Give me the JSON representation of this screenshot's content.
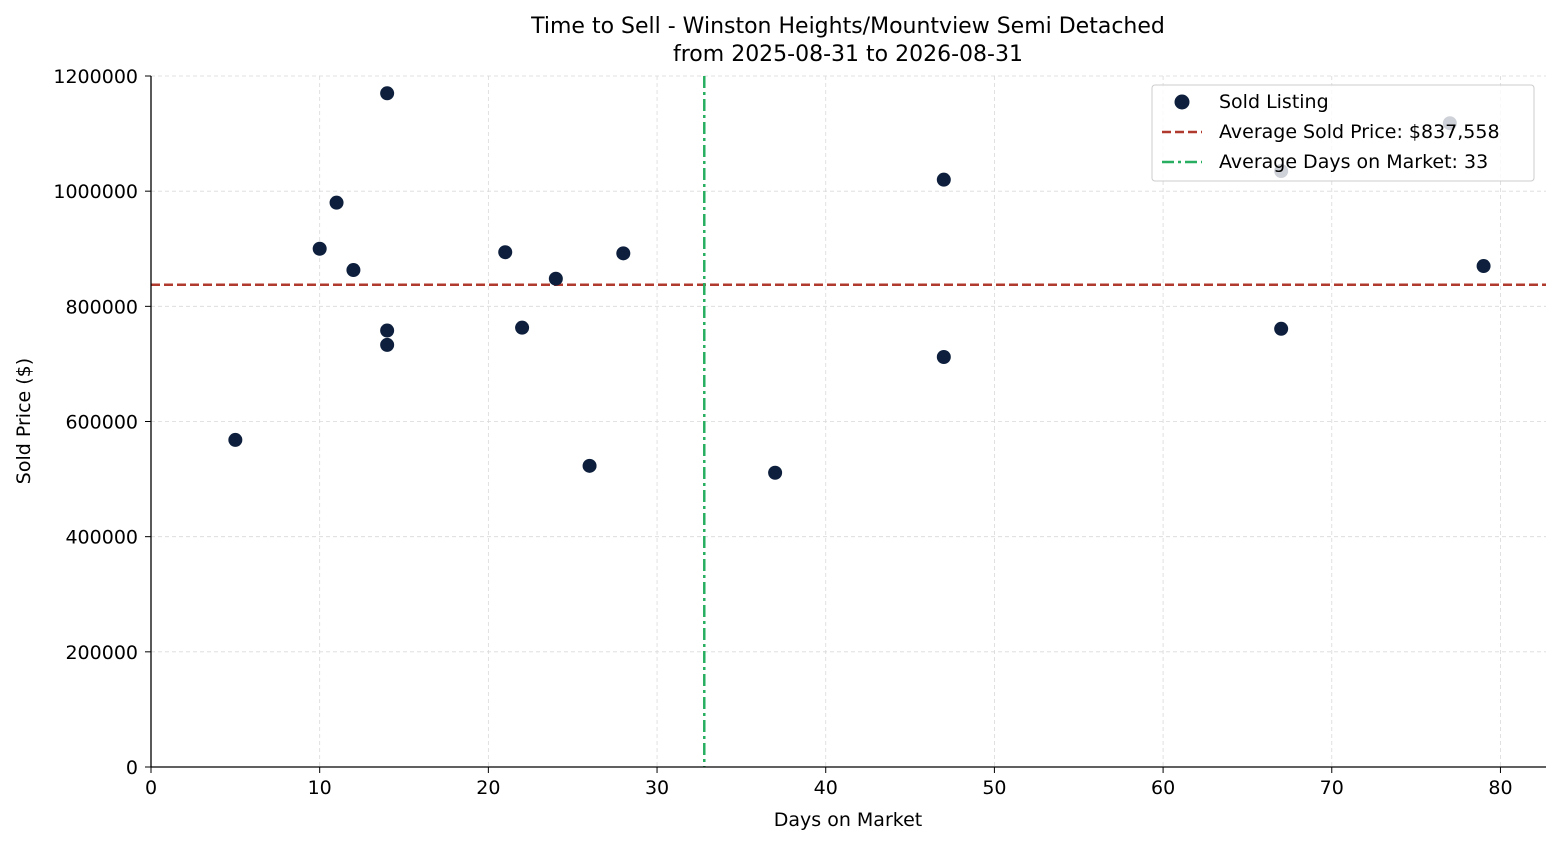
{
  "chart_data": {
    "type": "scatter",
    "title": "Time to Sell - Winston Heights/Mountview Semi Detached",
    "subtitle": "from 2025-08-31 to 2026-08-31",
    "xlabel": "Days on Market",
    "ylabel": "Sold Price ($)",
    "xlim": [
      0,
      82.7
    ],
    "ylim": [
      0,
      1200000
    ],
    "xticks": [
      0,
      10,
      20,
      30,
      40,
      50,
      60,
      70,
      80
    ],
    "yticks": [
      0,
      200000,
      400000,
      600000,
      800000,
      1000000,
      1200000
    ],
    "grid": true,
    "legend_position": "top-right",
    "series": [
      {
        "name": "Sold Listing",
        "color": "#0d1f3c",
        "points": [
          {
            "x": 5,
            "y": 568000
          },
          {
            "x": 10,
            "y": 900000
          },
          {
            "x": 11,
            "y": 980000
          },
          {
            "x": 12,
            "y": 863000
          },
          {
            "x": 14,
            "y": 1170000
          },
          {
            "x": 14,
            "y": 758000
          },
          {
            "x": 14,
            "y": 733000
          },
          {
            "x": 21,
            "y": 894000
          },
          {
            "x": 22,
            "y": 763000
          },
          {
            "x": 24,
            "y": 848000
          },
          {
            "x": 26,
            "y": 523000
          },
          {
            "x": 28,
            "y": 892000
          },
          {
            "x": 37,
            "y": 511000
          },
          {
            "x": 47,
            "y": 1020000
          },
          {
            "x": 47,
            "y": 712000
          },
          {
            "x": 67,
            "y": 1035000
          },
          {
            "x": 67,
            "y": 761000
          },
          {
            "x": 77,
            "y": 1118000
          },
          {
            "x": 79,
            "y": 870000
          }
        ]
      }
    ],
    "reference_lines": [
      {
        "orientation": "horizontal",
        "value": 837558,
        "label": "Average Sold Price: $837,558",
        "color": "#b03a2e",
        "style": "dashed"
      },
      {
        "orientation": "vertical",
        "value": 32.8,
        "label": "Average Days on Market: 33",
        "color": "#27ae60",
        "style": "dashdot"
      }
    ]
  }
}
